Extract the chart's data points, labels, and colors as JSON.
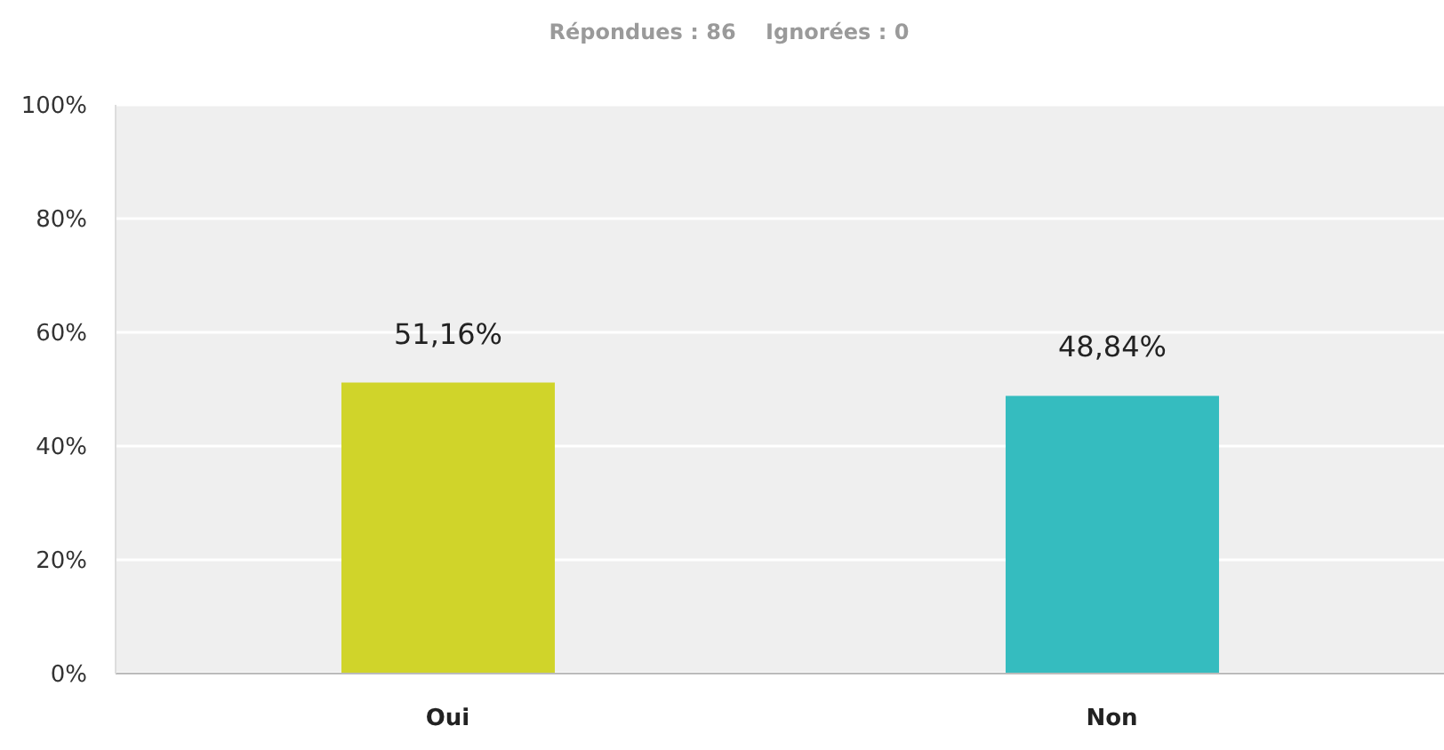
{
  "chart_data": {
    "type": "bar",
    "title": "Répondues : 86    Ignorées : 0",
    "categories": [
      "Oui",
      "Non"
    ],
    "values": [
      51.16,
      48.84
    ],
    "colors": [
      "#d0d42a",
      "#35bcbf"
    ],
    "value_labels": [
      "51,16%",
      "48,84%"
    ],
    "ylim": [
      0,
      100
    ],
    "yticks": [
      {
        "value": 0,
        "label": "0%"
      },
      {
        "value": 20,
        "label": "20%"
      },
      {
        "value": 40,
        "label": "40%"
      },
      {
        "value": 60,
        "label": "60%"
      },
      {
        "value": 80,
        "label": "80%"
      },
      {
        "value": 100,
        "label": "100%"
      }
    ],
    "grid": "y"
  }
}
